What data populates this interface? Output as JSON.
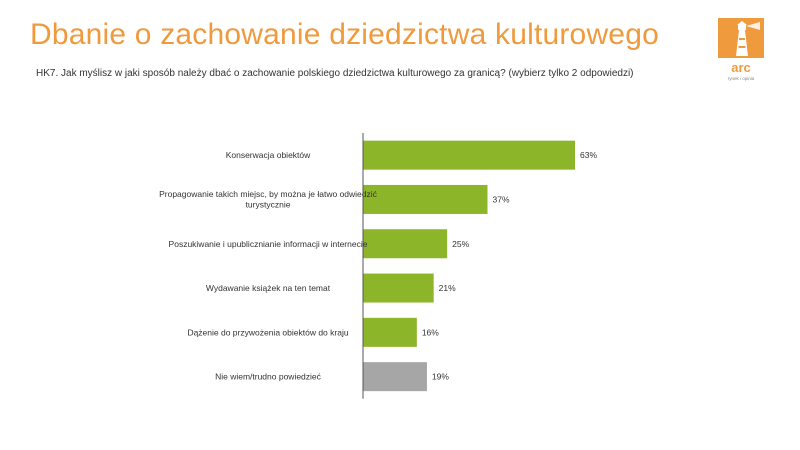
{
  "header": {
    "title": "Dbanie o zachowanie dziedzictwa kulturowego",
    "question": "HK7. Jak myślisz w jaki sposób należy dbać o zachowanie polskiego dziedzictwa kulturowego za granicą? (wybierz tylko 2 odpowiedzi)"
  },
  "logo": {
    "text": "arc",
    "tagline": "rynek i opinia",
    "icon": "lighthouse-icon",
    "color": "#f09a3e"
  },
  "colors": {
    "title": "#f09a3e",
    "bar": "#8db52a",
    "bar_muted": "#a6a6a6",
    "axis": "#555555"
  },
  "chart_data": {
    "type": "bar",
    "orientation": "horizontal",
    "categories": [
      [
        "Konserwacja obiektów"
      ],
      [
        "Propagowanie takich miejsc, by można je łatwo odwiedzić",
        "turystycznie"
      ],
      [
        "Poszukiwanie i upublicznianie informacji w internecie"
      ],
      [
        "Wydawanie książek na ten temat"
      ],
      [
        "Dążenie do przywożenia obiektów do kraju"
      ],
      [
        "Nie wiem/trudno powiedzieć"
      ]
    ],
    "values": [
      63,
      37,
      25,
      21,
      16,
      19
    ],
    "value_labels": [
      "63%",
      "37%",
      "25%",
      "21%",
      "16%",
      "19%"
    ],
    "muted": [
      false,
      false,
      false,
      false,
      false,
      true
    ],
    "unit": "%",
    "xlim": [
      0,
      100
    ],
    "title": "",
    "xlabel": "",
    "ylabel": "",
    "grid": false,
    "legend": "none"
  }
}
